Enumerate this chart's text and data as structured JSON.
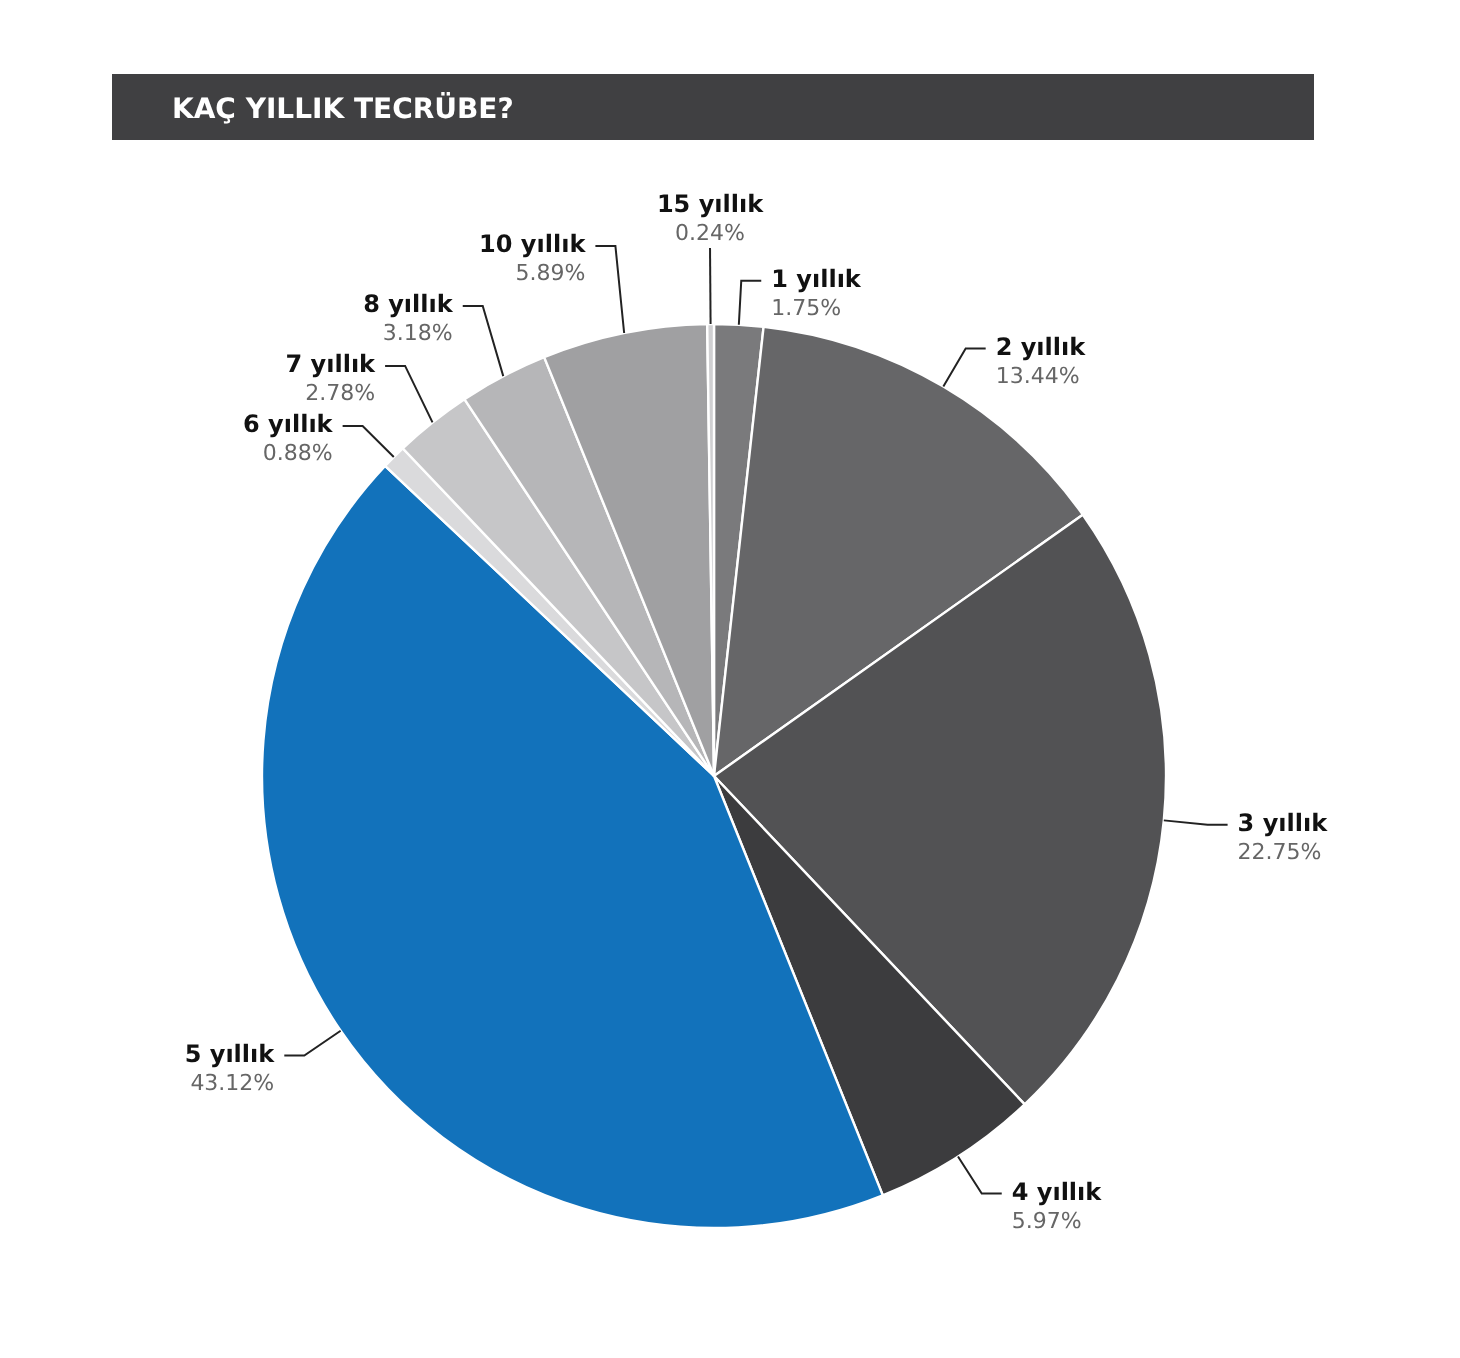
{
  "chart_data": {
    "type": "pie",
    "title": "KAÇ YILLIK TECRÜBE?",
    "categories": [
      "1 yıllık",
      "2 yıllık",
      "3 yıllık",
      "4 yıllık",
      "5 yıllık",
      "6 yıllık",
      "7 yıllık",
      "8 yıllık",
      "10 yıllık",
      "15 yıllık"
    ],
    "values": [
      1.75,
      13.44,
      22.75,
      5.97,
      43.12,
      0.88,
      2.78,
      3.18,
      5.89,
      0.24
    ],
    "value_labels": [
      "1.75%",
      "13.44%",
      "22.75%",
      "5.97%",
      "43.12%",
      "0.88%",
      "2.78%",
      "3.18%",
      "5.89%",
      "0.24%"
    ],
    "colors": [
      "#7a7a7c",
      "#666668",
      "#525254",
      "#3c3c3e",
      "#1272bb",
      "#dadadc",
      "#c6c6c8",
      "#b6b6b8",
      "#a0a0a2",
      "#d0d0d2"
    ]
  }
}
